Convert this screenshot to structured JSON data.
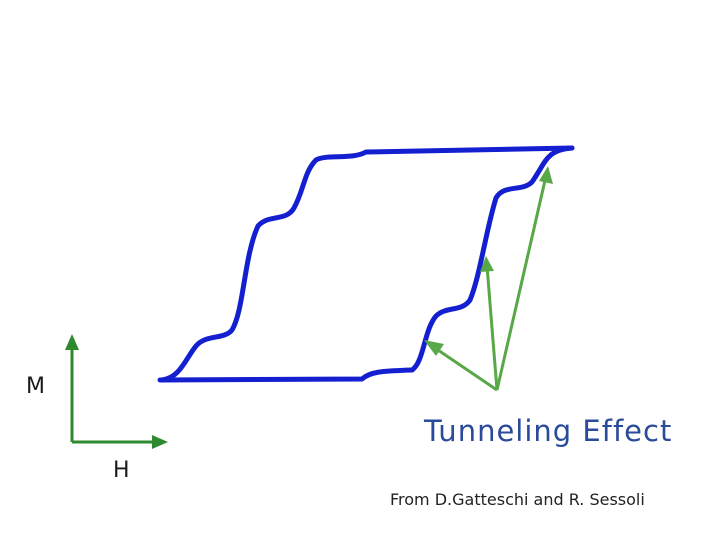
{
  "labels": {
    "magnetization_axis": "M",
    "field_axis": "H",
    "annotation": "Tunneling Effect",
    "credit": "From D.Gatteschi and R. Sessoli"
  },
  "colors": {
    "loop": "#1420d0",
    "axes": "#2e8a2e",
    "arrows": "#58a848",
    "annotation_text": "#2a4a9a"
  }
}
